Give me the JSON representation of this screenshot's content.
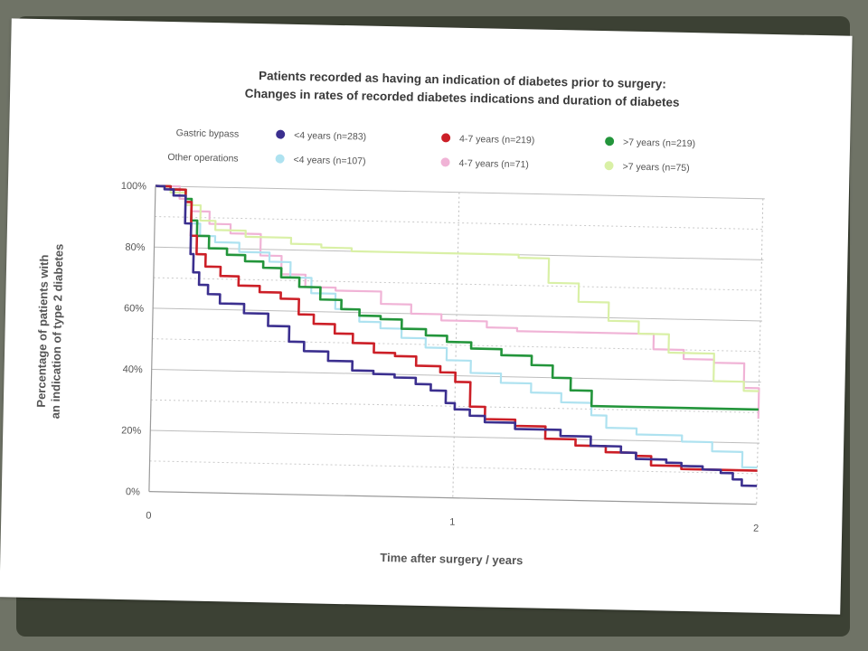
{
  "chart_data": {
    "type": "line",
    "step": true,
    "title": "Patients recorded as having an indication of diabetes prior to surgery:",
    "subtitle": "Changes in rates of recorded diabetes indications and duration of diabetes",
    "xlabel": "Time after surgery / years",
    "ylabel": [
      "Percentage of patients with",
      "an indication of type 2 diabetes"
    ],
    "xlim": [
      0,
      2
    ],
    "ylim": [
      0,
      100
    ],
    "x_ticks": [
      "0",
      "1",
      "2"
    ],
    "y_ticks": [
      "0%",
      "20%",
      "40%",
      "60%",
      "80%",
      "100%"
    ],
    "grid": "dashed gridlines at 10% steps and at year 1",
    "legend_rows": [
      "Gastric bypass",
      "Other operations"
    ],
    "series": [
      {
        "name": "<4 years (n=283)",
        "group": "Gastric bypass",
        "color": "#3b2f8f",
        "x": [
          0,
          0.03,
          0.06,
          0.1,
          0.12,
          0.13,
          0.15,
          0.18,
          0.22,
          0.3,
          0.38,
          0.45,
          0.5,
          0.58,
          0.66,
          0.73,
          0.8,
          0.87,
          0.92,
          0.97,
          1.0,
          1.05,
          1.1,
          1.2,
          1.35,
          1.45,
          1.55,
          1.6,
          1.7,
          1.75,
          1.82,
          1.88,
          1.92,
          1.95,
          2.0
        ],
        "y": [
          100,
          99,
          97,
          88,
          78,
          72,
          68,
          65,
          62,
          59,
          55,
          50,
          47,
          44,
          41,
          40,
          39,
          37,
          35,
          31,
          29,
          27,
          25,
          23,
          21,
          18,
          16,
          14,
          13,
          12,
          11,
          10,
          8,
          6,
          6
        ]
      },
      {
        "name": "4-7 years (n=219)",
        "group": "Gastric bypass",
        "color": "#cc1f27",
        "x": [
          0,
          0.05,
          0.1,
          0.12,
          0.14,
          0.17,
          0.22,
          0.28,
          0.35,
          0.42,
          0.48,
          0.53,
          0.6,
          0.66,
          0.73,
          0.8,
          0.87,
          0.95,
          1.0,
          1.05,
          1.1,
          1.2,
          1.3,
          1.4,
          1.5,
          1.6,
          1.65,
          1.75,
          1.85,
          2.0
        ],
        "y": [
          100,
          99,
          95,
          84,
          78,
          74,
          71,
          68,
          66,
          64,
          59,
          56,
          53,
          50,
          47,
          46,
          43,
          41,
          38,
          30,
          26,
          24,
          20,
          18,
          16,
          15,
          12,
          11,
          11,
          11
        ]
      },
      {
        "name": ">7 years (n=219)",
        "group": "Gastric bypass",
        "color": "#23953b",
        "x": [
          0,
          0.05,
          0.1,
          0.12,
          0.14,
          0.18,
          0.24,
          0.3,
          0.36,
          0.42,
          0.48,
          0.55,
          0.62,
          0.68,
          0.75,
          0.82,
          0.9,
          0.97,
          1.05,
          1.15,
          1.25,
          1.32,
          1.38,
          1.45,
          1.55,
          2.0
        ],
        "y": [
          100,
          99,
          96,
          89,
          84,
          80,
          78,
          76,
          74,
          71,
          68,
          64,
          61,
          59,
          58,
          55,
          53,
          51,
          49,
          47,
          44,
          40,
          36,
          31,
          31,
          31
        ]
      },
      {
        "name": "<4 years (n=107)",
        "group": "Other operations",
        "color": "#aee2f0",
        "x": [
          0,
          0.05,
          0.1,
          0.12,
          0.15,
          0.2,
          0.28,
          0.38,
          0.45,
          0.52,
          0.6,
          0.68,
          0.75,
          0.82,
          0.9,
          0.97,
          1.05,
          1.15,
          1.25,
          1.35,
          1.45,
          1.5,
          1.6,
          1.75,
          1.85,
          1.95,
          2.0
        ],
        "y": [
          100,
          99,
          95,
          88,
          84,
          82,
          79,
          76,
          71,
          66,
          61,
          57,
          55,
          52,
          49,
          45,
          41,
          38,
          35,
          32,
          28,
          24,
          22,
          20,
          17,
          12,
          12
        ]
      },
      {
        "name": "4-7 years (n=71)",
        "group": "Other operations",
        "color": "#f0b3d6",
        "x": [
          0,
          0.08,
          0.12,
          0.18,
          0.25,
          0.35,
          0.42,
          0.5,
          0.6,
          0.75,
          0.85,
          0.95,
          1.0,
          1.1,
          1.2,
          1.3,
          1.4,
          1.5,
          1.65,
          1.75,
          1.85,
          1.95,
          2.0
        ],
        "y": [
          100,
          96,
          92,
          88,
          85,
          78,
          72,
          68,
          67,
          63,
          60,
          58,
          58,
          56,
          55,
          55,
          55,
          55,
          50,
          47,
          46,
          38,
          28
        ]
      },
      {
        "name": ">7 years (n=75)",
        "group": "Other operations",
        "color": "#d9f0a6",
        "x": [
          0,
          0.05,
          0.1,
          0.15,
          0.2,
          0.3,
          0.45,
          0.55,
          0.65,
          0.8,
          0.95,
          1.1,
          1.2,
          1.3,
          1.4,
          1.5,
          1.6,
          1.7,
          1.78,
          1.85,
          1.95,
          2.0
        ],
        "y": [
          100,
          98,
          94,
          89,
          86,
          84,
          82,
          81,
          80,
          80,
          80,
          80,
          79,
          71,
          65,
          59,
          55,
          49,
          49,
          40,
          37,
          37
        ]
      }
    ]
  }
}
